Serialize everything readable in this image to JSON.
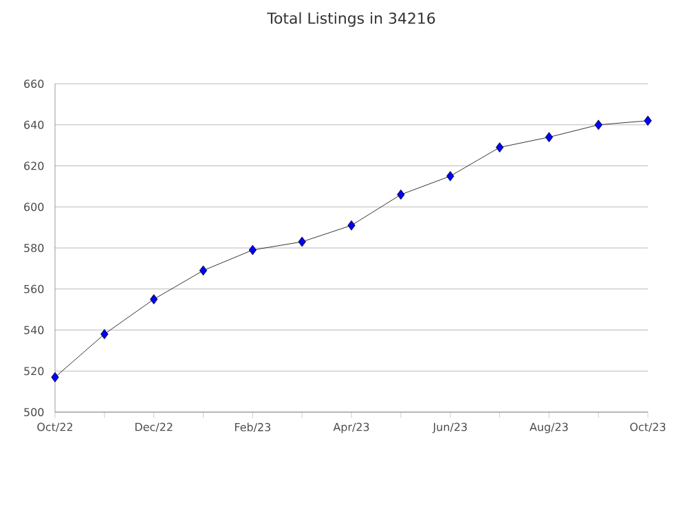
{
  "chart_data": {
    "type": "line",
    "title": "Total Listings in 34216",
    "categories": [
      "Oct/22",
      null,
      "Dec/22",
      null,
      "Feb/23",
      null,
      "Apr/23",
      null,
      "Jun/23",
      null,
      "Aug/23",
      null,
      "Oct/23"
    ],
    "series": [
      {
        "color": "#0000ff",
        "values": [
          517,
          538,
          555,
          569,
          579,
          583,
          591,
          606,
          615,
          629,
          634,
          640,
          642
        ]
      }
    ],
    "ylim": [
      500,
      660
    ],
    "yticks": [
      500,
      520,
      540,
      560,
      580,
      600,
      620,
      640,
      660
    ],
    "grid": "y",
    "marker": "diamond",
    "line_style": "solid"
  }
}
